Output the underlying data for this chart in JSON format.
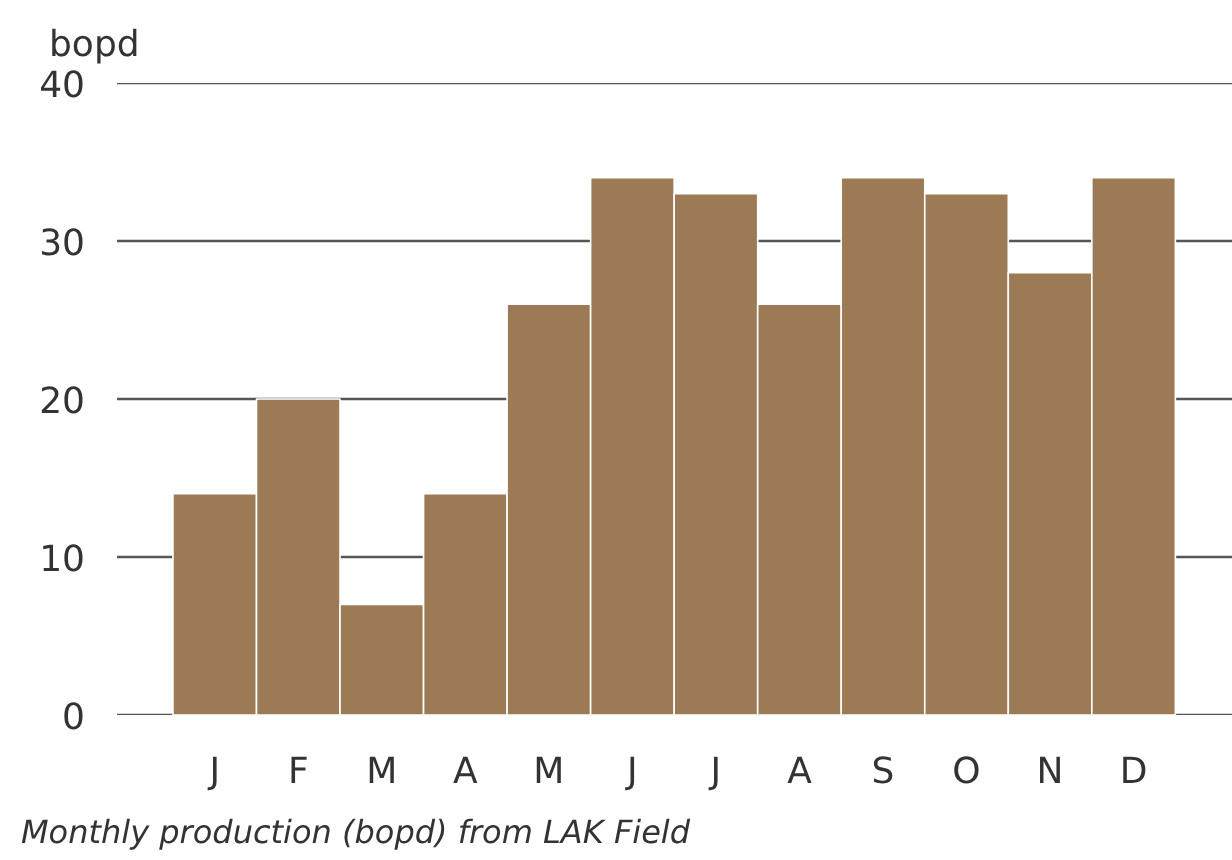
{
  "chart_data": {
    "type": "bar",
    "ylabel": "bopd",
    "categories": [
      "J",
      "F",
      "M",
      "A",
      "M",
      "J",
      "J",
      "A",
      "S",
      "O",
      "N",
      "D"
    ],
    "values": [
      14,
      20,
      7,
      14,
      26,
      34,
      33,
      26,
      34,
      33,
      28,
      34
    ],
    "color": "#9c7a55",
    "ylim": [
      0,
      40
    ],
    "yticks": [
      0,
      10,
      20,
      30,
      40
    ],
    "grid": "y",
    "annotations": [
      "Monthly production (bopd) from LAK Field"
    ]
  }
}
